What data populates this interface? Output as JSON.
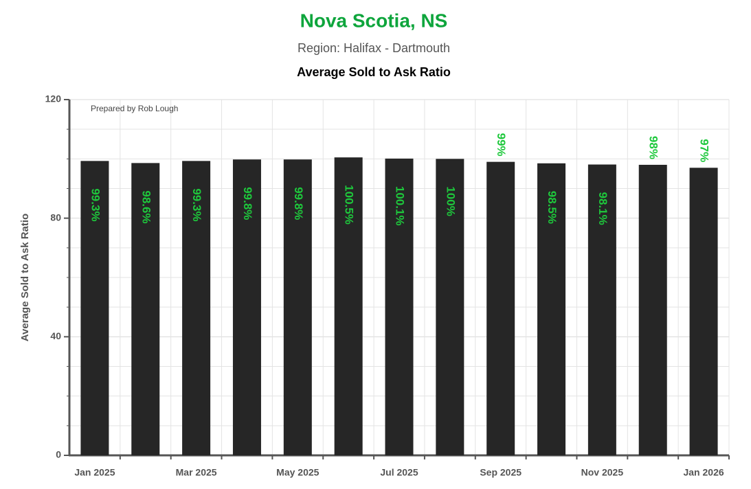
{
  "chart_data": {
    "type": "bar",
    "title": "Nova Scotia, NS",
    "subtitle": "Region: Halifax - Dartmouth",
    "chart_title": "Average Sold to Ask Ratio",
    "y_label": "Average Sold to Ask Ratio",
    "annotation": "Prepared by Rob Lough",
    "categories": [
      "Jan 2025",
      null,
      "Mar 2025",
      null,
      "May 2025",
      null,
      "Jul 2025",
      null,
      "Sep 2025",
      null,
      "Nov 2025",
      null,
      "Jan 2026"
    ],
    "values": [
      99.3,
      98.6,
      99.3,
      99.8,
      99.8,
      100.5,
      100.1,
      100,
      99,
      98.5,
      98.1,
      98,
      97
    ],
    "value_labels": [
      "99.3%",
      "98.6%",
      "99.3%",
      "99.8%",
      "99.8%",
      "100.5%",
      "100.1%",
      "100%",
      "99%",
      "98.5%",
      "98.1%",
      "98%",
      "97%"
    ],
    "color": "#262626",
    "label_color": "#1ec83c",
    "ylim": [
      0,
      120
    ],
    "yticks": [
      0,
      40,
      80,
      120
    ],
    "grid": true
  }
}
